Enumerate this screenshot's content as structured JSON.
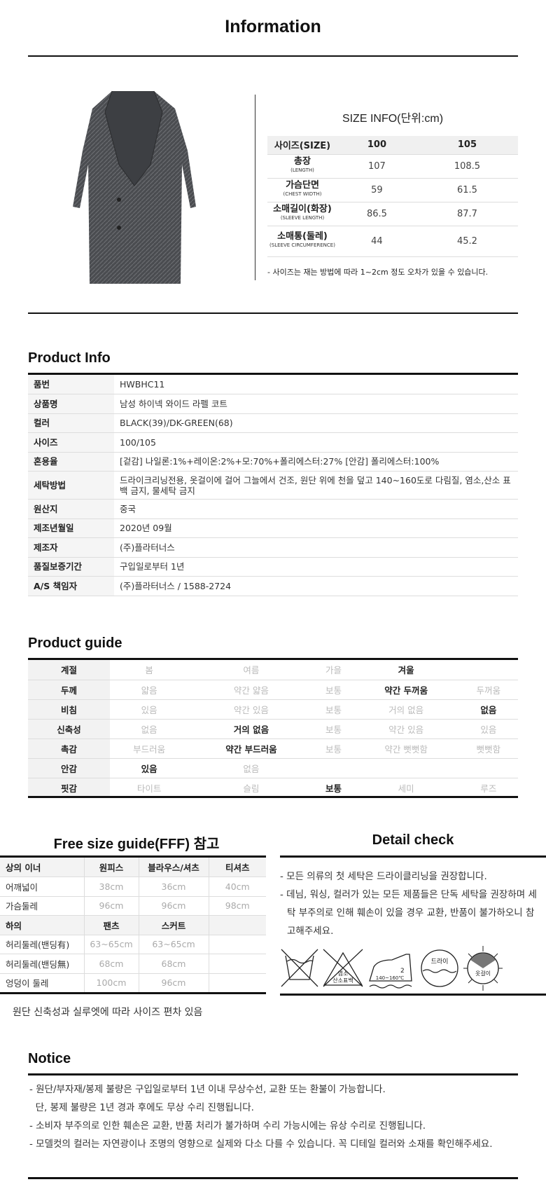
{
  "information": {
    "title": "Information"
  },
  "size_info": {
    "title": "SIZE INFO(단위:cm)",
    "header": [
      "사이즈(SIZE)",
      "100",
      "105"
    ],
    "rows": [
      {
        "label": "총장",
        "sub": "(LENGTH)",
        "values": [
          "107",
          "108.5"
        ]
      },
      {
        "label": "가슴단면",
        "sub": "(CHEST WIDTH)",
        "values": [
          "59",
          "61.5"
        ]
      },
      {
        "label": "소매길이(화장)",
        "sub": "(SLEEVE LENGTH)",
        "values": [
          "86.5",
          "87.7"
        ]
      },
      {
        "label": "소매통(둘레)",
        "sub": "(SLEEVE CIRCUMFERENCE)",
        "values": [
          "44",
          "45.2"
        ]
      }
    ],
    "note": "- 사이즈는 재는 방법에 따라 1~2cm 정도 오차가 있을 수 있습니다."
  },
  "product_info": {
    "title": "Product Info",
    "rows": [
      {
        "k": "품번",
        "v": "HWBHC11"
      },
      {
        "k": "상품명",
        "v": "남성 하이넥 와이드 라펠 코트"
      },
      {
        "k": "컬러",
        "v": "BLACK(39)/DK-GREEN(68)"
      },
      {
        "k": "사이즈",
        "v": "100/105"
      },
      {
        "k": "혼용율",
        "v": "[겉감] 나일론:1%+레이온:2%+모:70%+폴리에스터:27% [안감] 폴리에스터:100%"
      },
      {
        "k": "세탁방법",
        "v": "드라이크리닝전용, 옷걸이에 걸어 그늘에서 건조, 원단 위에 천을 덮고 140~160도로 다림질, 염소,산소 표백 금지, 물세탁 금지"
      },
      {
        "k": "원산지",
        "v": "중국"
      },
      {
        "k": "제조년월일",
        "v": "2020년 09월"
      },
      {
        "k": "제조자",
        "v": "(주)플라터너스"
      },
      {
        "k": "품질보증기간",
        "v": "구입일로부터 1년"
      },
      {
        "k": "A/S 책임자",
        "v": "(주)플라터너스 / 1588-2724"
      }
    ]
  },
  "product_guide": {
    "title": "Product guide",
    "rows": [
      {
        "k": "계절",
        "opts": [
          "봄",
          "여름",
          "가을",
          "겨울",
          ""
        ],
        "selected": 3
      },
      {
        "k": "두께",
        "opts": [
          "얇음",
          "약간 얇음",
          "보통",
          "약간 두꺼움",
          "두꺼움"
        ],
        "selected": 3
      },
      {
        "k": "비침",
        "opts": [
          "있음",
          "약간 있음",
          "보통",
          "거의 없음",
          "없음"
        ],
        "selected": 4
      },
      {
        "k": "신축성",
        "opts": [
          "없음",
          "거의 없음",
          "보통",
          "약간 있음",
          "있음"
        ],
        "selected": 1
      },
      {
        "k": "촉감",
        "opts": [
          "부드러움",
          "약간 부드러움",
          "보통",
          "약간 뻣뻣함",
          "뻣뻣함"
        ],
        "selected": 1
      },
      {
        "k": "안감",
        "opts": [
          "있음",
          "없음",
          "",
          "",
          ""
        ],
        "selected": 0
      },
      {
        "k": "핏감",
        "opts": [
          "타이트",
          "슬림",
          "보통",
          "세미",
          "루즈"
        ],
        "selected": 2
      }
    ]
  },
  "free_size": {
    "title": "Free size guide(FFF) 참고",
    "rows": [
      {
        "hd": true,
        "c": [
          "상의 이너",
          "원피스",
          "블라우스/셔츠",
          "티셔츠"
        ]
      },
      {
        "c": [
          "어깨넓이",
          "38cm",
          "36cm",
          "40cm"
        ]
      },
      {
        "c": [
          "가슴둘레",
          "96cm",
          "96cm",
          "98cm"
        ]
      },
      {
        "hd": true,
        "c": [
          "하의",
          "팬츠",
          "스커트",
          ""
        ]
      },
      {
        "c": [
          "허리둘레(밴딩有)",
          "63~65cm",
          "63~65cm",
          ""
        ]
      },
      {
        "c": [
          "허리둘레(밴딩無)",
          "68cm",
          "68cm",
          ""
        ]
      },
      {
        "c": [
          "엉덩이 둘레",
          "100cm",
          "96cm",
          ""
        ]
      }
    ],
    "note": "원단 신축성과 실루엣에 따라 사이즈 편차 있음"
  },
  "detail_check": {
    "title": "Detail check",
    "lines": [
      "- 모든 의류의 첫 세탁은 드라이클리닝을 권장합니다.",
      "- 데님, 워싱, 컬러가 있는 모든 제품들은 단독 세탁을 권장하며 세탁 부주의로 인해 훼손이 있을 경우 교환, 반품이 불가하오니 참고해주세요."
    ],
    "icons": [
      {
        "name": "no-wash-icon"
      },
      {
        "name": "no-bleach-icon",
        "text": "염소 산소표백"
      },
      {
        "name": "iron-icon",
        "text": "2",
        "sub": "140~160℃"
      },
      {
        "name": "dry-clean-icon",
        "text": "드라이"
      },
      {
        "name": "hang-dry-shade-icon",
        "text": "옷걸이"
      }
    ]
  },
  "notice": {
    "title": "Notice",
    "lines": [
      "- 원단/부자재/봉제 불량은 구입일로부터 1년 이내 무상수선, 교환 또는 환불이 가능합니다.",
      "  단, 봉제 불량은 1년 경과 후에도 무상 수리 진행됩니다.",
      "- 소비자 부주의로 인한 훼손은 교환, 반품 처리가 불가하며 수리 가능시에는 유상 수리로 진행됩니다.",
      "- 모델컷의 컬러는 자연광이나 조명의 영향으로 실제와 다소 다를 수 있습니다. 꼭 디테일 컬러와 소재를 확인해주세요."
    ]
  }
}
